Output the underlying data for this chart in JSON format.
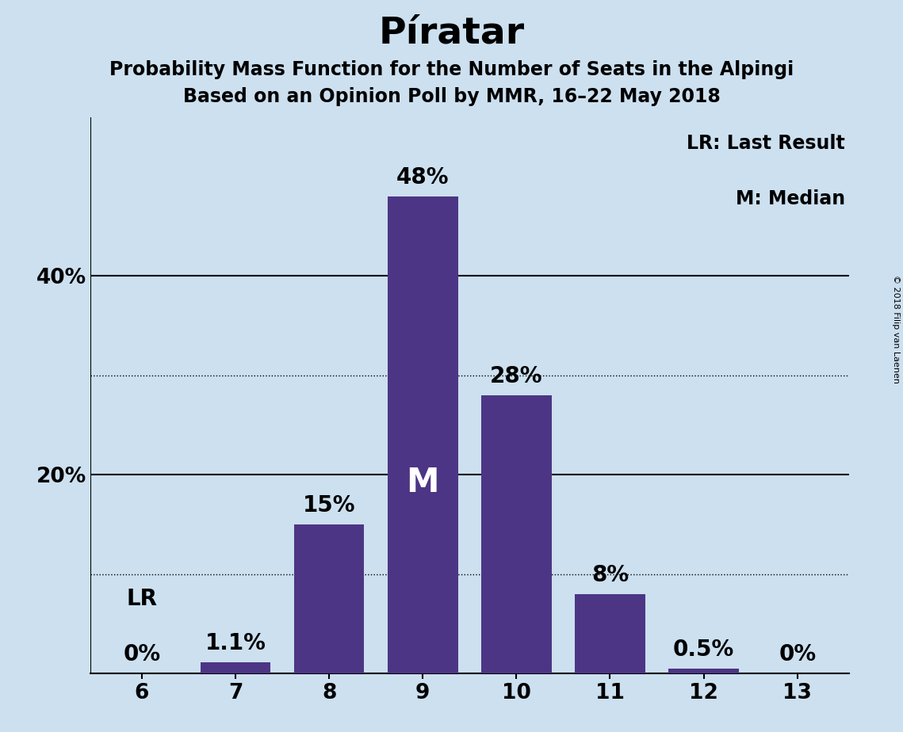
{
  "title": "Píratar",
  "subtitle1": "Probability Mass Function for the Number of Seats in the Alpingi",
  "subtitle2": "Based on an Opinion Poll by MMR, 16–22 May 2018",
  "copyright": "© 2018 Filip van Laenen",
  "seats": [
    6,
    7,
    8,
    9,
    10,
    11,
    12,
    13
  ],
  "probabilities": [
    0.0,
    1.1,
    15.0,
    48.0,
    28.0,
    8.0,
    0.5,
    0.0
  ],
  "bar_color": "#4d3585",
  "background_color": "#cce0f0",
  "median_seat": 9,
  "last_result_seat": 6,
  "legend_text1": "LR: Last Result",
  "legend_text2": "M: Median",
  "yticks": [
    0,
    10,
    20,
    30,
    40,
    50
  ],
  "ytick_labels": [
    "",
    "",
    "20%",
    "",
    "40%",
    ""
  ],
  "dotted_line_values": [
    10,
    30
  ],
  "solid_line_values": [
    20,
    40
  ],
  "ylim": [
    0,
    56
  ],
  "bar_width": 0.75,
  "title_fontsize": 34,
  "subtitle_fontsize": 17,
  "tick_fontsize": 19,
  "annotation_fontsize": 20,
  "legend_fontsize": 17,
  "median_label_color": "#ffffff",
  "median_label_fontsize": 30
}
